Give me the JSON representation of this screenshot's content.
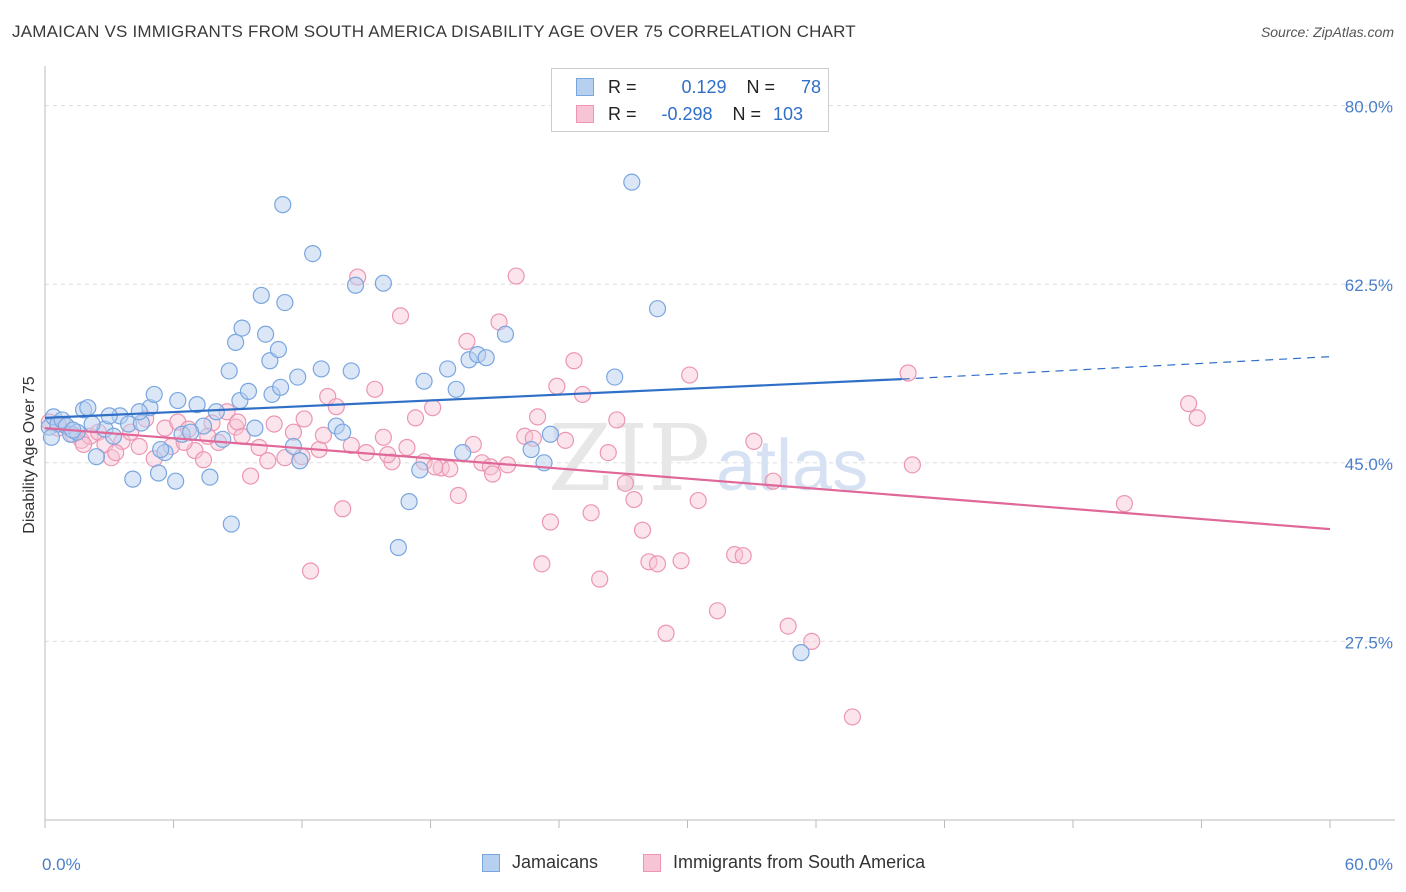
{
  "header": {
    "title": "JAMAICAN VS IMMIGRANTS FROM SOUTH AMERICA DISABILITY AGE OVER 75 CORRELATION CHART",
    "source": "Source: ZipAtlas.com"
  },
  "watermark": {
    "zip": "ZIP",
    "atlas": "atlas"
  },
  "legend_top": {
    "rows": [
      {
        "r_label": "R =",
        "r_value": "0.129",
        "n_label": "N =",
        "n_value": "78"
      },
      {
        "r_label": "R =",
        "r_value": "-0.298",
        "n_label": "N =",
        "n_value": "103"
      }
    ]
  },
  "legend_bottom": {
    "items": [
      {
        "label": "Jamaicans"
      },
      {
        "label": "Immigrants from South America"
      }
    ]
  },
  "colors": {
    "jamaicans_fill": "#b8d0f0",
    "jamaicans_stroke": "#7aa6e0",
    "jamaicans_line": "#2f6fc7",
    "sa_fill": "#f6c4d4",
    "sa_stroke": "#ec96b2",
    "sa_line": "#e06898",
    "axis_text": "#4a7fc8",
    "grid": "#dddddd"
  },
  "chart_data": {
    "type": "scatter",
    "title": "JAMAICAN VS IMMIGRANTS FROM SOUTH AMERICA DISABILITY AGE OVER 75 CORRELATION CHART",
    "xlabel": "",
    "ylabel": "Disability Age Over 75",
    "xlim": [
      0,
      60
    ],
    "ylim": [
      10,
      83
    ],
    "x_tick_labels": [
      "0.0%",
      "60.0%"
    ],
    "y_ticks": [
      27.5,
      45.0,
      62.5,
      80.0
    ],
    "y_tick_labels": [
      "27.5%",
      "45.0%",
      "62.5%",
      "80.0%"
    ],
    "grid": true,
    "series": [
      {
        "name": "Jamaicans",
        "r": 0.129,
        "n": 78,
        "trend": {
          "x0": 0,
          "y0": 49.4,
          "x1": 40,
          "y1": 53.2,
          "dash_to_x": 60,
          "dash_to_y": 55.4
        },
        "points": [
          [
            0.2,
            48.5
          ],
          [
            0.4,
            49.5
          ],
          [
            0.6,
            48.8
          ],
          [
            0.8,
            49.2
          ],
          [
            1.0,
            48.6
          ],
          [
            1.2,
            47.8
          ],
          [
            1.5,
            48.0
          ],
          [
            1.8,
            50.2
          ],
          [
            2.0,
            50.4
          ],
          [
            2.4,
            45.6
          ],
          [
            2.8,
            48.3
          ],
          [
            3.2,
            47.6
          ],
          [
            3.5,
            49.6
          ],
          [
            3.9,
            48.8
          ],
          [
            4.1,
            43.4
          ],
          [
            4.5,
            48.9
          ],
          [
            4.9,
            50.4
          ],
          [
            5.1,
            51.7
          ],
          [
            5.3,
            44.0
          ],
          [
            5.6,
            46.0
          ],
          [
            6.1,
            43.2
          ],
          [
            6.2,
            51.1
          ],
          [
            6.4,
            47.8
          ],
          [
            7.1,
            50.7
          ],
          [
            7.4,
            48.6
          ],
          [
            7.7,
            43.6
          ],
          [
            8.0,
            50.0
          ],
          [
            8.3,
            47.3
          ],
          [
            8.6,
            54.0
          ],
          [
            8.7,
            39.0
          ],
          [
            8.9,
            56.8
          ],
          [
            9.1,
            51.1
          ],
          [
            9.2,
            58.2
          ],
          [
            9.5,
            52.0
          ],
          [
            10.1,
            61.4
          ],
          [
            10.3,
            57.6
          ],
          [
            10.5,
            55.0
          ],
          [
            10.6,
            51.7
          ],
          [
            10.9,
            56.1
          ],
          [
            11.0,
            52.4
          ],
          [
            11.1,
            70.3
          ],
          [
            11.2,
            60.7
          ],
          [
            11.6,
            46.6
          ],
          [
            11.8,
            53.4
          ],
          [
            11.9,
            45.2
          ],
          [
            12.5,
            65.5
          ],
          [
            12.9,
            54.2
          ],
          [
            13.6,
            48.6
          ],
          [
            13.9,
            48.0
          ],
          [
            14.3,
            54.0
          ],
          [
            14.5,
            62.4
          ],
          [
            15.8,
            62.6
          ],
          [
            16.5,
            36.7
          ],
          [
            17.0,
            41.2
          ],
          [
            17.5,
            44.3
          ],
          [
            17.7,
            53.0
          ],
          [
            18.8,
            54.2
          ],
          [
            19.2,
            52.2
          ],
          [
            19.5,
            46.0
          ],
          [
            19.8,
            55.1
          ],
          [
            20.2,
            55.6
          ],
          [
            20.6,
            55.3
          ],
          [
            21.5,
            57.6
          ],
          [
            22.7,
            46.3
          ],
          [
            23.3,
            45.0
          ],
          [
            23.6,
            47.8
          ],
          [
            26.6,
            53.4
          ],
          [
            27.4,
            72.5
          ],
          [
            28.6,
            60.1
          ],
          [
            35.3,
            26.4
          ],
          [
            5.4,
            46.3
          ],
          [
            6.8,
            48.0
          ],
          [
            2.2,
            48.8
          ],
          [
            3.0,
            49.6
          ],
          [
            1.3,
            48.2
          ],
          [
            0.3,
            47.5
          ],
          [
            9.8,
            48.4
          ],
          [
            4.4,
            50.0
          ]
        ]
      },
      {
        "name": "Immigrants from South America",
        "r": -0.298,
        "n": 103,
        "trend": {
          "x0": 0,
          "y0": 48.4,
          "x1": 60,
          "y1": 38.5
        },
        "points": [
          [
            0.2,
            49.0
          ],
          [
            0.6,
            48.4
          ],
          [
            1.0,
            48.6
          ],
          [
            1.3,
            47.8
          ],
          [
            1.7,
            47.2
          ],
          [
            2.1,
            47.6
          ],
          [
            2.5,
            48.0
          ],
          [
            2.8,
            46.8
          ],
          [
            3.1,
            45.5
          ],
          [
            3.6,
            47.1
          ],
          [
            4.0,
            48.0
          ],
          [
            4.4,
            46.6
          ],
          [
            4.7,
            49.3
          ],
          [
            5.1,
            45.4
          ],
          [
            5.6,
            48.4
          ],
          [
            5.9,
            46.6
          ],
          [
            6.2,
            49.0
          ],
          [
            6.7,
            48.3
          ],
          [
            7.0,
            46.2
          ],
          [
            7.4,
            45.3
          ],
          [
            7.8,
            48.9
          ],
          [
            8.1,
            47.0
          ],
          [
            8.5,
            50.0
          ],
          [
            8.9,
            48.5
          ],
          [
            9.2,
            47.6
          ],
          [
            9.6,
            43.7
          ],
          [
            10.0,
            46.5
          ],
          [
            10.4,
            45.2
          ],
          [
            10.7,
            48.8
          ],
          [
            11.2,
            45.5
          ],
          [
            11.6,
            48.0
          ],
          [
            12.0,
            45.6
          ],
          [
            12.4,
            34.4
          ],
          [
            12.8,
            46.3
          ],
          [
            13.2,
            51.5
          ],
          [
            13.6,
            50.5
          ],
          [
            13.9,
            40.5
          ],
          [
            14.3,
            46.7
          ],
          [
            14.6,
            63.2
          ],
          [
            15.0,
            46.0
          ],
          [
            15.4,
            52.2
          ],
          [
            15.8,
            47.5
          ],
          [
            16.2,
            45.1
          ],
          [
            16.6,
            59.4
          ],
          [
            16.9,
            46.5
          ],
          [
            17.3,
            49.4
          ],
          [
            17.7,
            45.1
          ],
          [
            18.1,
            50.4
          ],
          [
            18.5,
            44.5
          ],
          [
            18.9,
            44.4
          ],
          [
            19.3,
            41.8
          ],
          [
            19.7,
            56.9
          ],
          [
            20.0,
            46.8
          ],
          [
            20.4,
            45.0
          ],
          [
            20.8,
            44.6
          ],
          [
            21.2,
            58.8
          ],
          [
            21.6,
            44.8
          ],
          [
            22.0,
            63.3
          ],
          [
            22.4,
            47.6
          ],
          [
            22.8,
            47.4
          ],
          [
            23.2,
            35.1
          ],
          [
            23.6,
            39.2
          ],
          [
            23.9,
            52.5
          ],
          [
            24.3,
            47.2
          ],
          [
            24.7,
            55.0
          ],
          [
            25.1,
            51.7
          ],
          [
            25.5,
            40.1
          ],
          [
            25.9,
            33.6
          ],
          [
            26.3,
            46.0
          ],
          [
            26.7,
            49.2
          ],
          [
            27.1,
            43.0
          ],
          [
            27.5,
            41.4
          ],
          [
            27.9,
            38.4
          ],
          [
            28.2,
            35.3
          ],
          [
            28.6,
            35.1
          ],
          [
            29.0,
            28.3
          ],
          [
            29.7,
            35.4
          ],
          [
            30.1,
            53.6
          ],
          [
            30.5,
            41.3
          ],
          [
            31.4,
            30.5
          ],
          [
            32.2,
            36.0
          ],
          [
            32.6,
            35.9
          ],
          [
            33.1,
            47.1
          ],
          [
            34.0,
            43.2
          ],
          [
            35.8,
            27.5
          ],
          [
            37.7,
            20.1
          ],
          [
            40.3,
            53.8
          ],
          [
            40.5,
            44.8
          ],
          [
            50.4,
            41.0
          ],
          [
            53.4,
            50.8
          ],
          [
            53.8,
            49.4
          ],
          [
            34.7,
            29.0
          ],
          [
            6.5,
            47.0
          ],
          [
            9.0,
            49.0
          ],
          [
            12.1,
            49.3
          ],
          [
            16.0,
            45.8
          ],
          [
            18.2,
            44.6
          ],
          [
            3.3,
            46.0
          ],
          [
            1.8,
            46.8
          ],
          [
            23.0,
            49.5
          ],
          [
            13.0,
            47.7
          ],
          [
            7.6,
            47.6
          ],
          [
            20.9,
            43.9
          ]
        ]
      }
    ]
  }
}
